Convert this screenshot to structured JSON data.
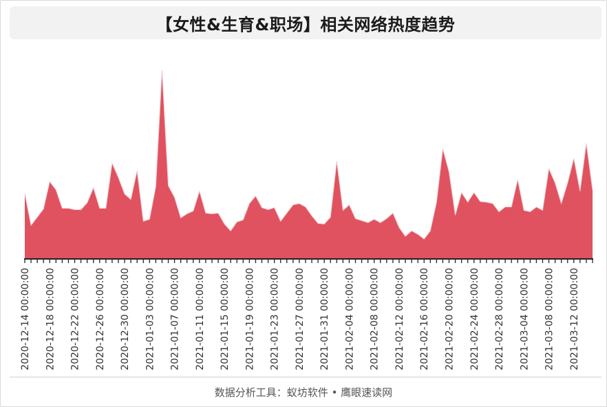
{
  "title": "【女性&生育&职场】相关网络热度趋势",
  "footer": "数据分析工具：蚁坊软件 • 鹰眼速读网",
  "colors": {
    "fill": "#e0525f",
    "axis": "#222222",
    "label": "#333333"
  },
  "chart_data": {
    "type": "area",
    "title": "【女性&生育&职场】相关网络热度趋势",
    "xlabel": "",
    "ylabel": "",
    "grid": false,
    "legend": "none",
    "x_start": "2020-12-14",
    "tick_labels": [
      "2020-12-14 00:00:00",
      "2020-12-18 00:00:00",
      "2020-12-22 00:00:00",
      "2020-12-26 00:00:00",
      "2020-12-30 00:00:00",
      "2021-01-03 00:00:00",
      "2021-01-07 00:00:00",
      "2021-01-11 00:00:00",
      "2021-01-15 00:00:00",
      "2021-01-19 00:00:00",
      "2021-01-23 00:00:00",
      "2021-01-27 00:00:00",
      "2021-01-31 00:00:00",
      "2021-02-04 00:00:00",
      "2021-02-08 00:00:00",
      "2021-02-12 00:00:00",
      "2021-02-16 00:00:00",
      "2021-02-20 00:00:00",
      "2021-02-24 00:00:00",
      "2021-02-28 00:00:00",
      "2021-03-04 00:00:00",
      "2021-03-08 00:00:00",
      "2021-03-12 00:00:00"
    ],
    "ylim": [
      0,
      275
    ],
    "series": [
      {
        "values": [
          95,
          48,
          60,
          72,
          112,
          100,
          73,
          73,
          71,
          71,
          81,
          103,
          73,
          73,
          139,
          118,
          94,
          86,
          128,
          54,
          57,
          105,
          275,
          106,
          89,
          59,
          65,
          69,
          98,
          66,
          65,
          66,
          50,
          40,
          53,
          56,
          80,
          91,
          74,
          71,
          74,
          54,
          66,
          78,
          80,
          75,
          62,
          51,
          50,
          60,
          142,
          70,
          78,
          58,
          55,
          52,
          57,
          52,
          58,
          66,
          45,
          32,
          40,
          35,
          28,
          40,
          82,
          160,
          126,
          63,
          96,
          82,
          96,
          83,
          82,
          80,
          68,
          75,
          75,
          115,
          70,
          68,
          75,
          70,
          131,
          110,
          80,
          110,
          146,
          98,
          168,
          100
        ]
      }
    ]
  }
}
